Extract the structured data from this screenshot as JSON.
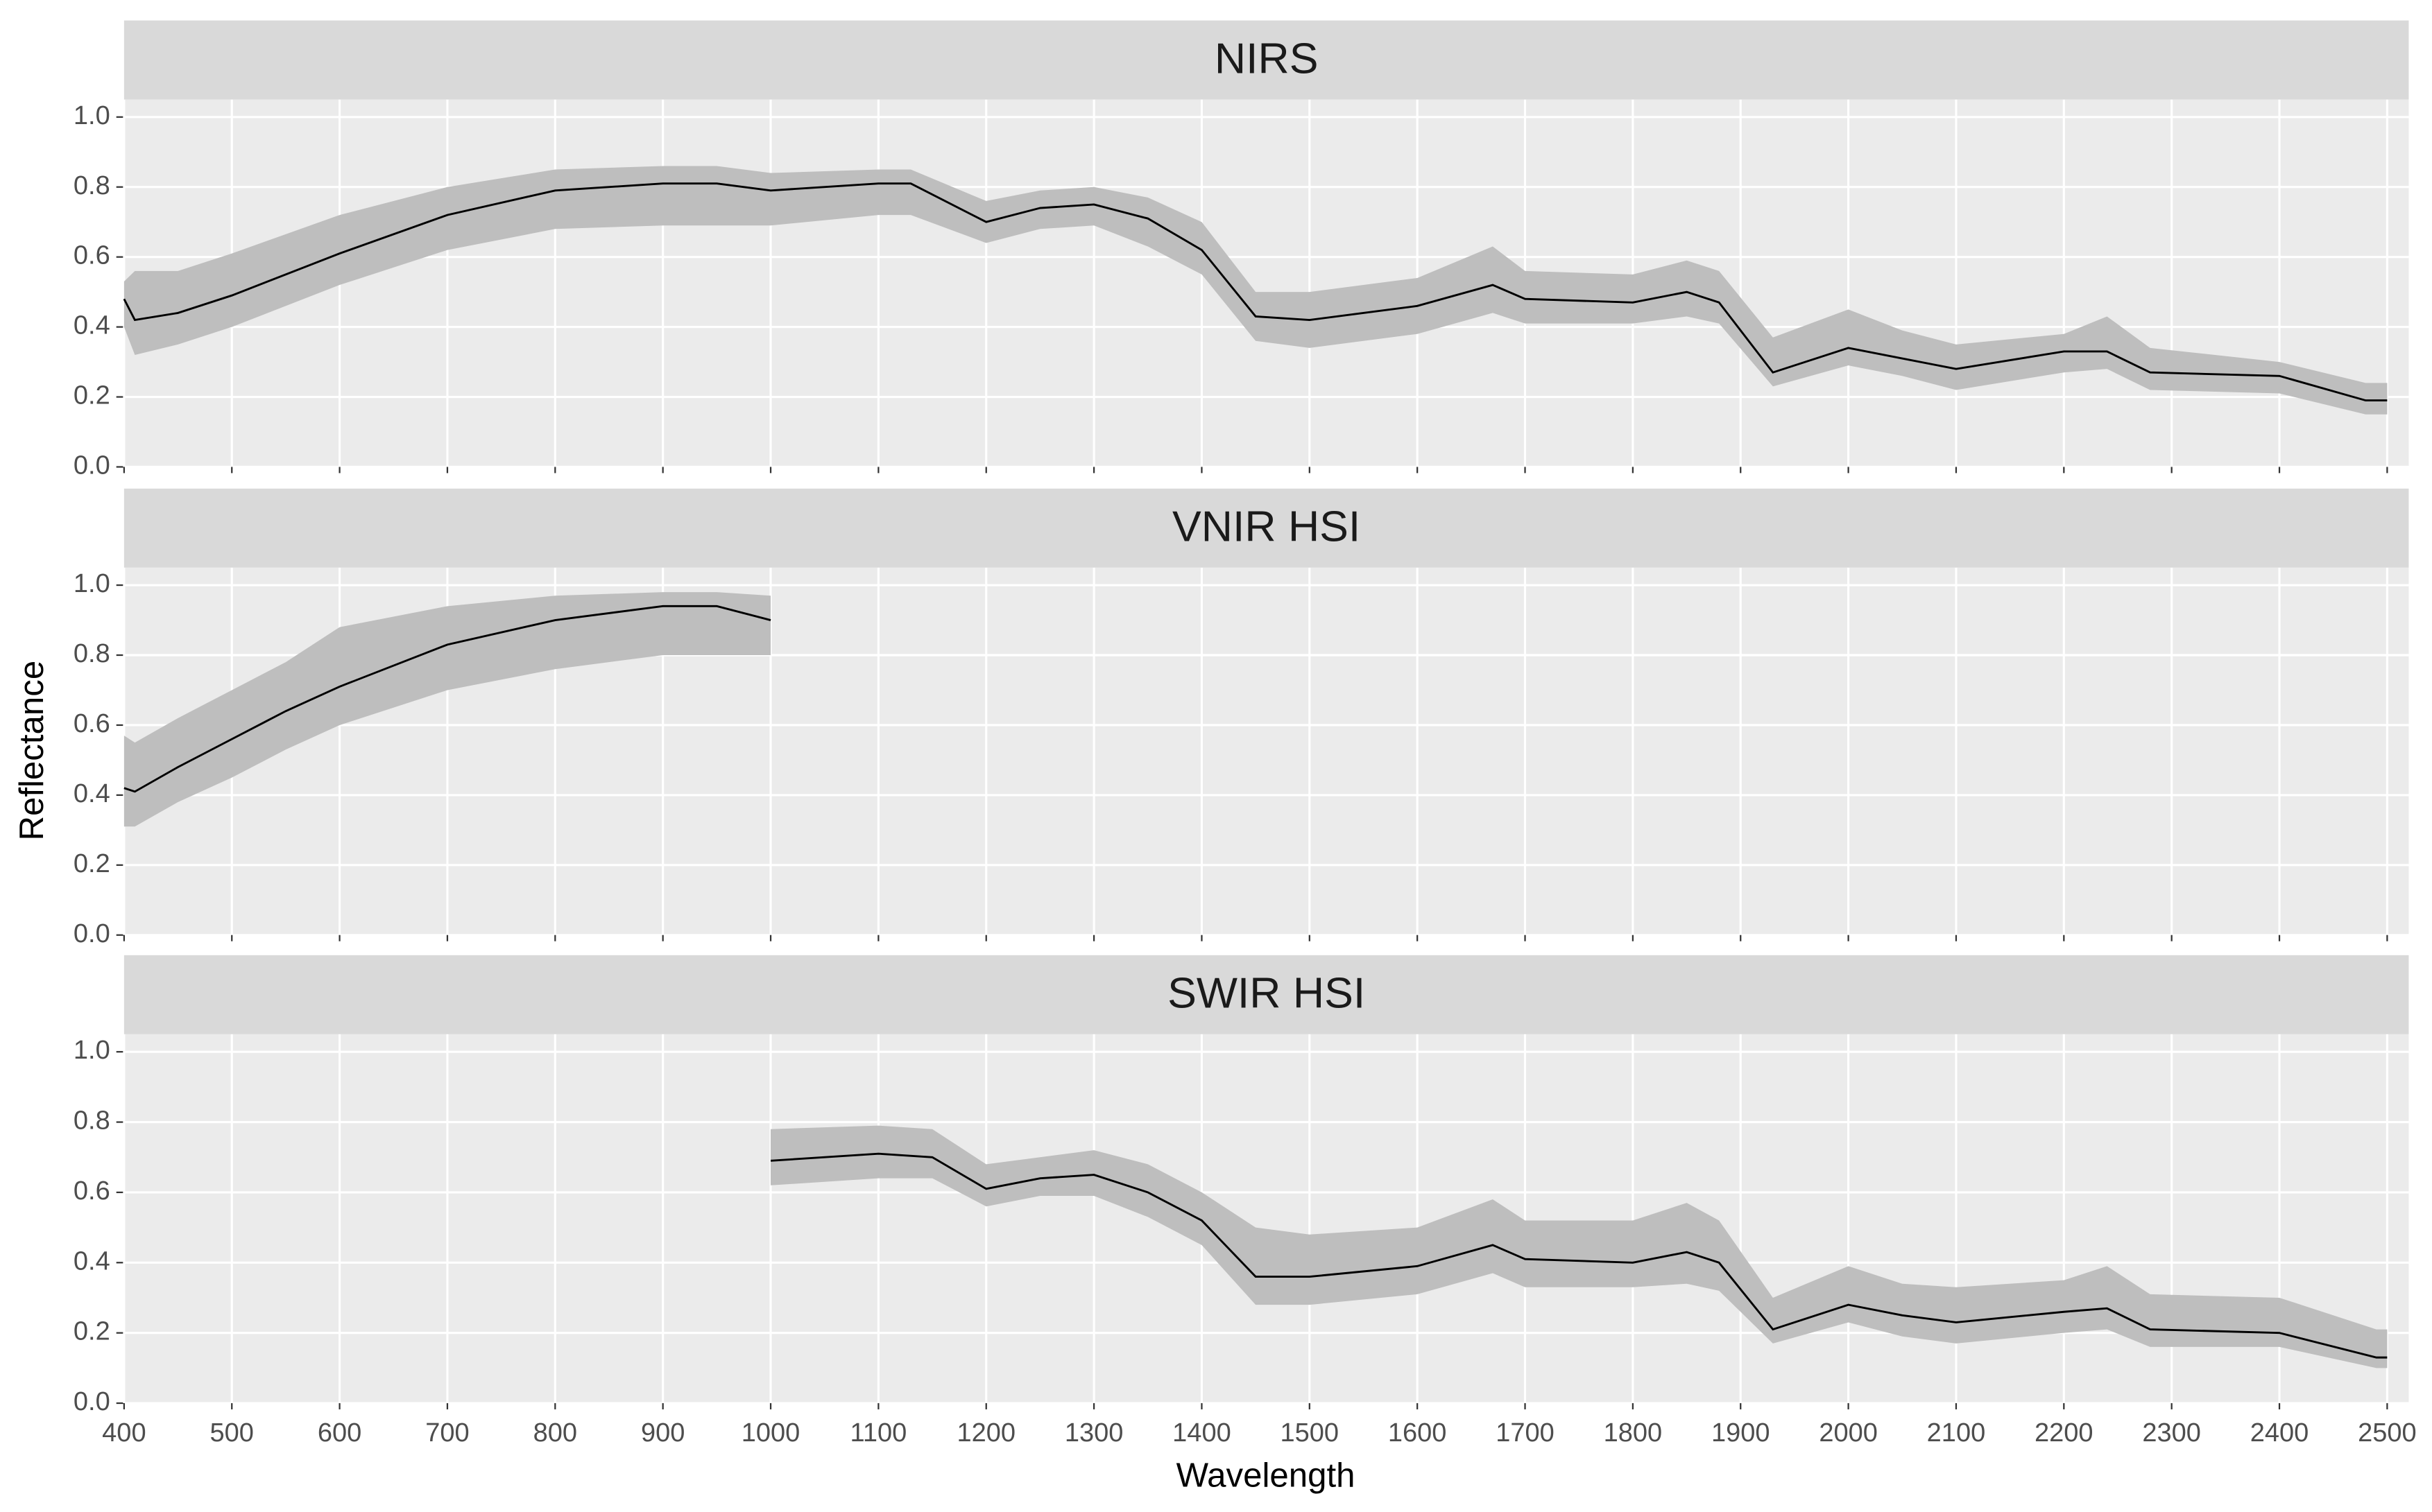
{
  "xlabel": "Wavelength",
  "ylabel": "Reflectance",
  "chart_data": [
    {
      "type": "line",
      "title": "NIRS",
      "color": "#000000",
      "band_color": "#bebebe",
      "grid": true,
      "xlim": [
        400,
        2520
      ],
      "ylim": [
        0,
        1.05
      ],
      "xticks": [
        400,
        500,
        600,
        700,
        800,
        900,
        1000,
        1100,
        1200,
        1300,
        1400,
        1500,
        1600,
        1700,
        1800,
        1900,
        2000,
        2100,
        2200,
        2300,
        2400,
        2500
      ],
      "yticks": [
        {
          "value": 0,
          "label": "0.0"
        },
        {
          "value": 0.2,
          "label": "0.2"
        },
        {
          "value": 0.4,
          "label": "0.4"
        },
        {
          "value": 0.6,
          "label": "0.6"
        },
        {
          "value": 0.8,
          "label": "0.8"
        },
        {
          "value": 1,
          "label": "1.0"
        }
      ],
      "x": [
        400,
        410,
        450,
        500,
        600,
        700,
        800,
        900,
        950,
        1000,
        1100,
        1130,
        1200,
        1250,
        1300,
        1350,
        1400,
        1450,
        1500,
        1550,
        1600,
        1670,
        1700,
        1800,
        1850,
        1880,
        1930,
        2000,
        2050,
        2100,
        2200,
        2240,
        2280,
        2400,
        2480,
        2500
      ],
      "values": [
        0.48,
        0.42,
        0.44,
        0.49,
        0.61,
        0.72,
        0.79,
        0.81,
        0.81,
        0.79,
        0.81,
        0.81,
        0.7,
        0.74,
        0.75,
        0.71,
        0.62,
        0.43,
        0.42,
        0.44,
        0.46,
        0.52,
        0.48,
        0.47,
        0.5,
        0.47,
        0.27,
        0.34,
        0.31,
        0.28,
        0.33,
        0.33,
        0.27,
        0.26,
        0.19,
        0.19
      ],
      "lower": [
        0.4,
        0.32,
        0.35,
        0.4,
        0.52,
        0.62,
        0.68,
        0.69,
        0.69,
        0.69,
        0.72,
        0.72,
        0.64,
        0.68,
        0.69,
        0.63,
        0.55,
        0.36,
        0.34,
        0.36,
        0.38,
        0.44,
        0.41,
        0.41,
        0.43,
        0.41,
        0.23,
        0.29,
        0.26,
        0.22,
        0.27,
        0.28,
        0.22,
        0.21,
        0.15,
        0.15
      ],
      "upper": [
        0.53,
        0.56,
        0.56,
        0.61,
        0.72,
        0.8,
        0.85,
        0.86,
        0.86,
        0.84,
        0.85,
        0.85,
        0.76,
        0.79,
        0.8,
        0.77,
        0.7,
        0.5,
        0.5,
        0.52,
        0.54,
        0.63,
        0.56,
        0.55,
        0.59,
        0.56,
        0.37,
        0.45,
        0.39,
        0.35,
        0.38,
        0.43,
        0.34,
        0.3,
        0.24,
        0.24
      ]
    },
    {
      "type": "line",
      "title": "VNIR HSI",
      "color": "#000000",
      "band_color": "#bebebe",
      "grid": true,
      "xlim": [
        400,
        2520
      ],
      "ylim": [
        0,
        1.05
      ],
      "xticks": [
        400,
        500,
        600,
        700,
        800,
        900,
        1000,
        1100,
        1200,
        1300,
        1400,
        1500,
        1600,
        1700,
        1800,
        1900,
        2000,
        2100,
        2200,
        2300,
        2400,
        2500
      ],
      "yticks": [
        {
          "value": 0,
          "label": "0.0"
        },
        {
          "value": 0.2,
          "label": "0.2"
        },
        {
          "value": 0.4,
          "label": "0.4"
        },
        {
          "value": 0.6,
          "label": "0.6"
        },
        {
          "value": 0.8,
          "label": "0.8"
        },
        {
          "value": 1,
          "label": "1.0"
        }
      ],
      "x": [
        400,
        410,
        450,
        500,
        550,
        600,
        700,
        800,
        900,
        950,
        1000
      ],
      "values": [
        0.42,
        0.41,
        0.48,
        0.56,
        0.64,
        0.71,
        0.83,
        0.9,
        0.94,
        0.94,
        0.9
      ],
      "lower": [
        0.31,
        0.31,
        0.38,
        0.45,
        0.53,
        0.6,
        0.7,
        0.76,
        0.8,
        0.8,
        0.8
      ],
      "upper": [
        0.57,
        0.55,
        0.62,
        0.7,
        0.78,
        0.88,
        0.94,
        0.97,
        0.98,
        0.98,
        0.97
      ]
    },
    {
      "type": "line",
      "title": "SWIR HSI",
      "color": "#000000",
      "band_color": "#bebebe",
      "grid": true,
      "xlim": [
        400,
        2520
      ],
      "ylim": [
        0,
        1.05
      ],
      "xticks": [
        400,
        500,
        600,
        700,
        800,
        900,
        1000,
        1100,
        1200,
        1300,
        1400,
        1500,
        1600,
        1700,
        1800,
        1900,
        2000,
        2100,
        2200,
        2300,
        2400,
        2500
      ],
      "yticks": [
        {
          "value": 0,
          "label": "0.0"
        },
        {
          "value": 0.2,
          "label": "0.2"
        },
        {
          "value": 0.4,
          "label": "0.4"
        },
        {
          "value": 0.6,
          "label": "0.6"
        },
        {
          "value": 0.8,
          "label": "0.8"
        },
        {
          "value": 1,
          "label": "1.0"
        }
      ],
      "x": [
        1000,
        1100,
        1150,
        1200,
        1250,
        1300,
        1350,
        1400,
        1450,
        1500,
        1600,
        1670,
        1700,
        1800,
        1850,
        1880,
        1930,
        2000,
        2050,
        2100,
        2200,
        2240,
        2280,
        2400,
        2490,
        2500
      ],
      "values": [
        0.69,
        0.71,
        0.7,
        0.61,
        0.64,
        0.65,
        0.6,
        0.52,
        0.36,
        0.36,
        0.39,
        0.45,
        0.41,
        0.4,
        0.43,
        0.4,
        0.21,
        0.28,
        0.25,
        0.23,
        0.26,
        0.27,
        0.21,
        0.2,
        0.13,
        0.13
      ],
      "lower": [
        0.62,
        0.64,
        0.64,
        0.56,
        0.59,
        0.59,
        0.53,
        0.45,
        0.28,
        0.28,
        0.31,
        0.37,
        0.33,
        0.33,
        0.34,
        0.32,
        0.17,
        0.23,
        0.19,
        0.17,
        0.2,
        0.21,
        0.16,
        0.16,
        0.1,
        0.1
      ],
      "upper": [
        0.78,
        0.79,
        0.78,
        0.68,
        0.7,
        0.72,
        0.68,
        0.6,
        0.5,
        0.48,
        0.5,
        0.58,
        0.52,
        0.52,
        0.57,
        0.52,
        0.3,
        0.39,
        0.34,
        0.33,
        0.35,
        0.39,
        0.31,
        0.3,
        0.21,
        0.21
      ]
    }
  ]
}
